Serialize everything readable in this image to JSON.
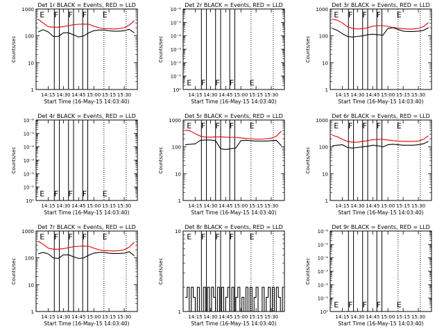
{
  "figure": {
    "x_tick_labels": [
      "14:15",
      "14:30",
      "14:45",
      "15:00",
      "15:15",
      "15:30"
    ],
    "colors": {
      "events": "#000000",
      "lld": "#e00000",
      "background": "#ffffff"
    }
  },
  "chart_data": [
    {
      "type": "line",
      "title": "Det 1r BLACK = Events, RED = LLD",
      "xlabel": "Start Time (16-May-15 14:03:40)",
      "ylabel": "Counts/sec",
      "yscale": "log",
      "ylim": [
        1,
        1000
      ],
      "y_tick_labels": [
        "1",
        "10",
        "100",
        "1000"
      ],
      "x_tick_labels": [
        "14:15",
        "14:30",
        "14:45",
        "15:00",
        "15:15",
        "15:30"
      ],
      "x": [
        "14:05",
        "14:10",
        "14:15",
        "14:20",
        "14:25",
        "14:30",
        "14:35",
        "14:40",
        "14:45",
        "14:50",
        "14:55",
        "15:00",
        "15:05",
        "15:10",
        "15:15",
        "15:20",
        "15:25",
        "15:30",
        "15:35",
        "15:40"
      ],
      "series": [
        {
          "name": "BLACK",
          "values": [
            140,
            170,
            140,
            95,
            95,
            130,
            130,
            110,
            90,
            100,
            130,
            155,
            165,
            165,
            155,
            150,
            150,
            155,
            175,
            130
          ]
        },
        {
          "name": "RED",
          "values": [
            420,
            300,
            220,
            210,
            210,
            220,
            240,
            260,
            270,
            275,
            270,
            230,
            200,
            185,
            185,
            180,
            185,
            200,
            250,
            370
          ]
        }
      ],
      "annotations": [
        "E",
        "F",
        "F",
        "F",
        "E"
      ],
      "grid": false
    },
    {
      "type": "line",
      "title": "Det 2r BLACK = Events, RED = LLD",
      "xlabel": "Start Time (16-May-15 14:03:40)",
      "ylabel": "Counts/sec",
      "yscale": "log",
      "ylim": [
        1,
        1000000
      ],
      "y_tick_labels": [
        "10⁰",
        "10⁻¹",
        "10⁻²",
        "10⁻³",
        "10⁻⁴",
        "10⁻⁵",
        "10⁻⁶"
      ],
      "x_tick_labels": [
        "14:15",
        "14:30",
        "14:45",
        "15:00",
        "15:15",
        "15:30"
      ],
      "series": [],
      "annotations": [
        "E",
        "F",
        "F",
        "F",
        "E"
      ],
      "grid": false
    },
    {
      "type": "line",
      "title": "Det 3r BLACK = Events, RED = LLD",
      "xlabel": "Start Time (16-May-15 14:03:40)",
      "ylabel": "Counts/sec",
      "yscale": "log",
      "ylim": [
        1,
        1000
      ],
      "y_tick_labels": [
        "1",
        "10",
        "100",
        "1000"
      ],
      "x_tick_labels": [
        "14:15",
        "14:30",
        "14:45",
        "15:00",
        "15:15",
        "15:30"
      ],
      "x": [
        "14:05",
        "14:10",
        "14:15",
        "14:20",
        "14:25",
        "14:30",
        "14:35",
        "14:40",
        "14:45",
        "14:50",
        "14:55",
        "15:00",
        "15:05",
        "15:10",
        "15:15",
        "15:20",
        "15:25",
        "15:30",
        "15:35",
        "15:40"
      ],
      "series": [
        {
          "name": "BLACK",
          "values": [
            190,
            160,
            120,
            95,
            90,
            95,
            100,
            110,
            115,
            110,
            105,
            190,
            200,
            175,
            150,
            145,
            145,
            150,
            160,
            200
          ]
        },
        {
          "name": "RED",
          "values": [
            420,
            380,
            300,
            220,
            190,
            180,
            185,
            200,
            230,
            240,
            240,
            225,
            205,
            195,
            185,
            180,
            180,
            190,
            220,
            310
          ]
        }
      ],
      "annotations": [
        "E",
        "F",
        "F",
        "F",
        "E"
      ],
      "grid": false
    },
    {
      "type": "line",
      "title": "Det 4r BLACK = Events, RED = LLD",
      "xlabel": "Start Time (16-May-15 14:03:40)",
      "ylabel": "Counts/sec",
      "yscale": "log",
      "ylim": [
        1,
        1000000
      ],
      "y_tick_labels": [
        "10⁰",
        "10⁻¹",
        "10⁻²",
        "10⁻³",
        "10⁻⁴",
        "10⁻⁵",
        "10⁻⁶"
      ],
      "x_tick_labels": [
        "14:15",
        "14:30",
        "14:45",
        "15:00",
        "15:15",
        "15:30"
      ],
      "series": [],
      "annotations": [
        "E",
        "F",
        "F",
        "F",
        "E"
      ],
      "grid": false
    },
    {
      "type": "line",
      "title": "Det 5r BLACK = Events, RED = LLD",
      "xlabel": "Start Time (16-May-15 14:03:40)",
      "ylabel": "Counts/sec",
      "yscale": "log",
      "ylim": [
        1,
        1000
      ],
      "y_tick_labels": [
        "1",
        "10",
        "100",
        "1000"
      ],
      "x_tick_labels": [
        "14:15",
        "14:30",
        "14:45",
        "15:00",
        "15:15",
        "15:30"
      ],
      "x": [
        "14:05",
        "14:10",
        "14:15",
        "14:20",
        "14:25",
        "14:30",
        "14:35",
        "14:40",
        "14:45",
        "14:50",
        "14:55",
        "15:00",
        "15:05",
        "15:10",
        "15:15",
        "15:20",
        "15:25",
        "15:30",
        "15:35",
        "15:40"
      ],
      "series": [
        {
          "name": "BLACK",
          "values": [
            120,
            125,
            130,
            175,
            180,
            180,
            170,
            85,
            80,
            85,
            90,
            170,
            175,
            170,
            165,
            165,
            165,
            170,
            175,
            110
          ]
        },
        {
          "name": "RED",
          "values": [
            420,
            390,
            310,
            250,
            230,
            230,
            235,
            235,
            230,
            225,
            225,
            215,
            205,
            200,
            195,
            195,
            200,
            210,
            250,
            380
          ]
        }
      ],
      "annotations": [
        "E",
        "F",
        "F",
        "F",
        "E"
      ],
      "grid": false
    },
    {
      "type": "line",
      "title": "Det 6r BLACK = Events, RED = LLD",
      "xlabel": "Start Time (16-May-15 14:03:40)",
      "ylabel": "Counts/sec",
      "yscale": "log",
      "ylim": [
        1,
        1000
      ],
      "y_tick_labels": [
        "1",
        "10",
        "100",
        "1000"
      ],
      "x_tick_labels": [
        "14:15",
        "14:30",
        "14:45",
        "15:00",
        "15:15",
        "15:30"
      ],
      "x": [
        "14:05",
        "14:10",
        "14:15",
        "14:20",
        "14:25",
        "14:30",
        "14:35",
        "14:40",
        "14:45",
        "14:50",
        "14:55",
        "15:00",
        "15:05",
        "15:10",
        "15:15",
        "15:20",
        "15:25",
        "15:30",
        "15:35",
        "15:40"
      ],
      "series": [
        {
          "name": "BLACK",
          "values": [
            110,
            115,
            120,
            95,
            90,
            95,
            100,
            105,
            115,
            110,
            100,
            120,
            125,
            120,
            115,
            115,
            115,
            120,
            130,
            160
          ]
        },
        {
          "name": "RED",
          "values": [
            270,
            240,
            190,
            160,
            150,
            150,
            160,
            170,
            185,
            190,
            190,
            180,
            170,
            165,
            160,
            160,
            160,
            165,
            190,
            260
          ]
        }
      ],
      "annotations": [
        "E",
        "F",
        "F",
        "F",
        "E"
      ],
      "grid": false
    },
    {
      "type": "line",
      "title": "Det 7r BLACK = Events, RED = LLD",
      "xlabel": "Start Time (16-May-15 14:03:40)",
      "ylabel": "Counts/sec",
      "yscale": "log",
      "ylim": [
        1,
        1000
      ],
      "y_tick_labels": [
        "1",
        "10",
        "100",
        "1000"
      ],
      "x_tick_labels": [
        "14:15",
        "14:30",
        "14:45",
        "15:00",
        "15:15",
        "15:30"
      ],
      "x": [
        "14:05",
        "14:10",
        "14:15",
        "14:20",
        "14:25",
        "14:30",
        "14:35",
        "14:40",
        "14:45",
        "14:50",
        "14:55",
        "15:00",
        "15:05",
        "15:10",
        "15:15",
        "15:20",
        "15:25",
        "15:30",
        "15:35",
        "15:40"
      ],
      "series": [
        {
          "name": "BLACK",
          "values": [
            140,
            160,
            140,
            100,
            95,
            130,
            130,
            110,
            95,
            100,
            125,
            150,
            160,
            160,
            150,
            145,
            145,
            150,
            170,
            120
          ]
        },
        {
          "name": "RED",
          "values": [
            420,
            320,
            230,
            210,
            210,
            220,
            240,
            260,
            270,
            275,
            270,
            230,
            200,
            185,
            185,
            180,
            185,
            200,
            250,
            380
          ]
        }
      ],
      "annotations": [
        "E",
        "F",
        "F",
        "F",
        "E"
      ],
      "grid": false
    },
    {
      "type": "line",
      "title": "Det 8r BLACK = Events, RED = LLD",
      "xlabel": "Start Time (16-May-15 14:03:40)",
      "ylabel": "Counts/sec",
      "yscale": "log",
      "ylim": [
        1,
        10
      ],
      "y_tick_labels": [
        "1",
        "10"
      ],
      "x_tick_labels": [
        "14:15",
        "14:30",
        "14:45",
        "15:00",
        "15:15",
        "15:30"
      ],
      "x": [
        "14:05",
        "14:07",
        "14:09",
        "14:11",
        "14:13",
        "14:15",
        "14:17",
        "14:19",
        "14:21",
        "14:23",
        "14:25",
        "14:27",
        "14:29",
        "14:31",
        "14:33",
        "14:35",
        "14:37",
        "14:39",
        "14:41",
        "14:43",
        "14:45",
        "14:47",
        "14:49",
        "14:51",
        "14:53",
        "14:55",
        "14:57",
        "14:59",
        "15:01",
        "15:03",
        "15:05",
        "15:07",
        "15:09",
        "15:11",
        "15:13",
        "15:15",
        "15:17",
        "15:19",
        "15:21",
        "15:23",
        "15:25",
        "15:27",
        "15:29",
        "15:31",
        "15:33",
        "15:35",
        "15:37",
        "15:39",
        "15:41"
      ],
      "series": [
        {
          "name": "BLACK",
          "values": [
            1.5,
            2,
            1,
            2,
            1.5,
            1,
            2,
            1,
            1,
            2,
            1,
            2,
            1,
            2,
            1.5,
            1,
            2,
            1,
            2,
            1,
            1.5,
            2,
            1,
            2,
            1,
            1.5,
            2,
            1,
            1.5,
            1,
            2,
            1,
            2,
            1,
            1.5,
            2,
            1,
            1,
            2,
            1,
            1.5,
            2,
            1,
            2,
            1,
            2,
            1.5,
            1,
            2
          ]
        }
      ],
      "annotations": [
        "E",
        "F",
        "F",
        "F",
        "E"
      ],
      "grid": false
    },
    {
      "type": "line",
      "title": "Det 9r BLACK = Events, RED = LLD",
      "xlabel": "Start Time (16-May-15 14:03:40)",
      "ylabel": "Counts/sec",
      "yscale": "log",
      "ylim": [
        1,
        1000000
      ],
      "y_tick_labels": [
        "10⁰",
        "10⁻¹",
        "10⁻²",
        "10⁻³",
        "10⁻⁴",
        "10⁻⁵",
        "10⁻⁶"
      ],
      "x_tick_labels": [
        "14:15",
        "14:30",
        "14:45",
        "15:00",
        "15:15",
        "15:30"
      ],
      "series": [],
      "annotations": [
        "E",
        "F",
        "F",
        "F",
        "E"
      ],
      "grid": false
    }
  ]
}
